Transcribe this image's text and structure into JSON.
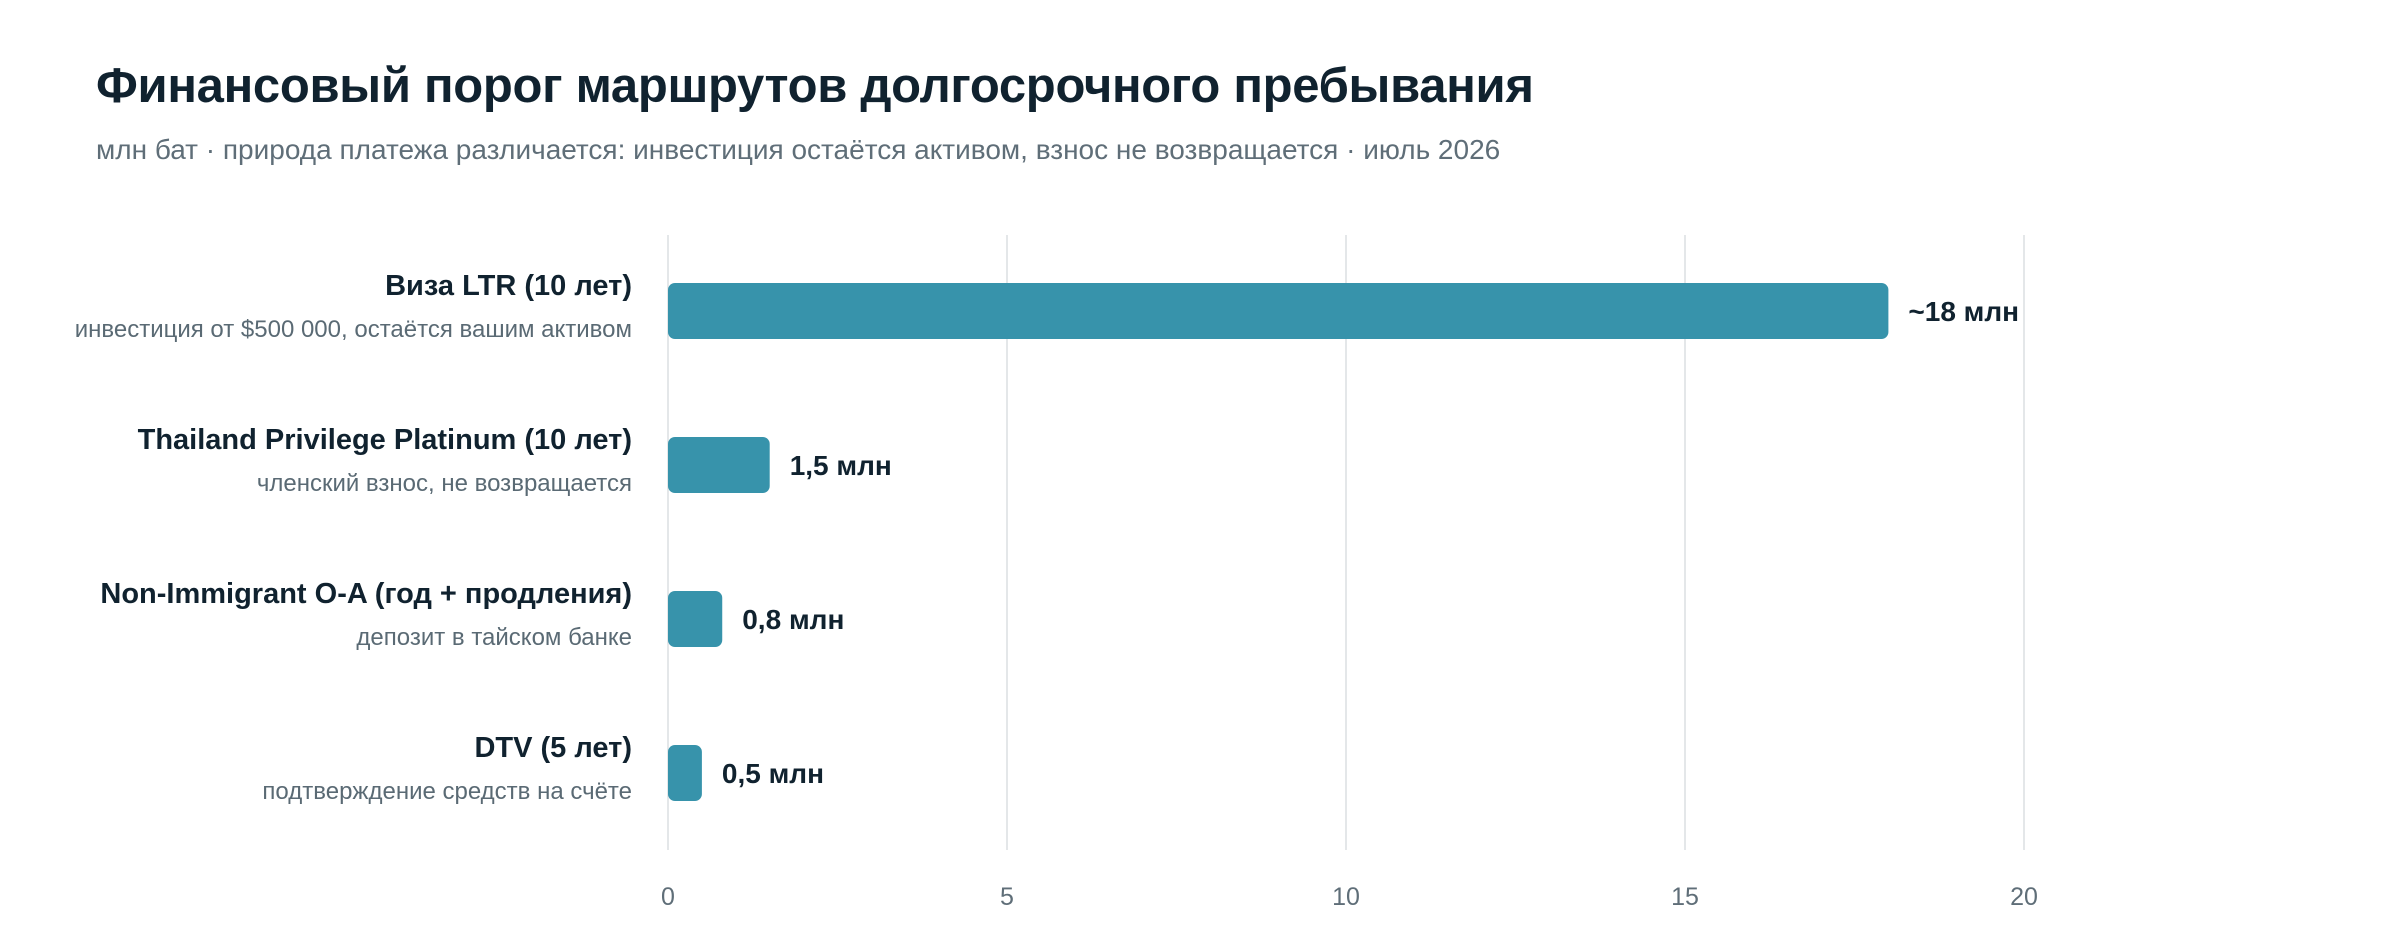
{
  "header": {
    "title": "Финансовый порог маршрутов долгосрочного пребывания",
    "subtitle": "млн бат · природа платежа различается: инвестиция остаётся активом, взнос не возвращается · июль 2026"
  },
  "colors": {
    "bar": "#3793ab",
    "grid": "#dcdfe2",
    "text_primary": "#10222f",
    "text_secondary": "#5f6e78"
  },
  "chart_data": {
    "type": "bar",
    "orientation": "horizontal",
    "title": "Финансовый порог маршрутов долгосрочного пребывания",
    "subtitle": "млн бат · природа платежа различается: инвестиция остаётся активом, взнос не возвращается · июль 2026",
    "xlabel": "",
    "ylabel": "",
    "xlim": [
      0,
      20
    ],
    "xticks": [
      0,
      5,
      10,
      15,
      20
    ],
    "grid": "vertical",
    "legend": "none",
    "categories": [
      "Виза LTR (10 лет)",
      "Thailand Privilege Platinum (10 лет)",
      "Non-Immigrant O-A (год + продления)",
      "DTV (5 лет)"
    ],
    "category_notes": [
      "инвестиция от $500 000, остаётся вашим активом",
      "членский взнос, не возвращается",
      "депозит в тайском банке",
      "подтверждение средств на счёте"
    ],
    "values": [
      18,
      1.5,
      0.8,
      0.5
    ],
    "value_labels": [
      "~18 млн",
      "1,5 млн",
      "0,8 млн",
      "0,5 млн"
    ]
  }
}
